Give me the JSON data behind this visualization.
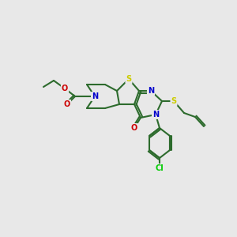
{
  "background_color": "#e8e8e8",
  "bond_color": "#2d6b2d",
  "atom_colors": {
    "S": "#cccc00",
    "N": "#0000cc",
    "O": "#cc0000",
    "Cl": "#00cc00",
    "C": "#2d6b2d"
  },
  "figsize": [
    3.0,
    3.0
  ],
  "dpi": 100
}
